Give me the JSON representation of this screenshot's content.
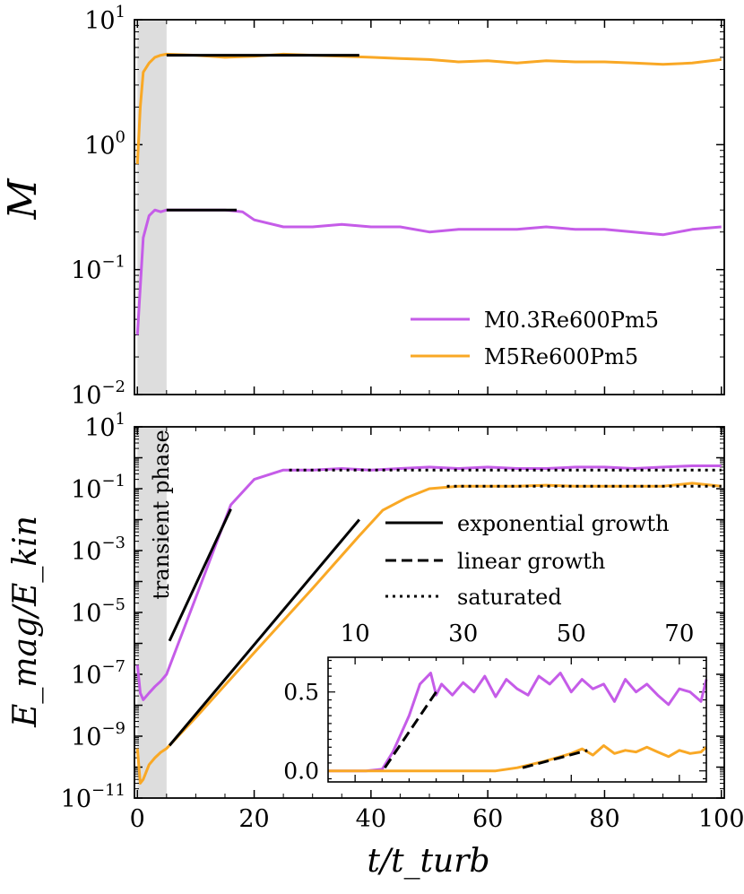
{
  "chart_data": [
    {
      "type": "line",
      "panel": "top",
      "yscale": "log",
      "ylabel": "M",
      "xlim": [
        -0.5,
        100.5
      ],
      "ylim_exp": [
        -2,
        1
      ],
      "ytick_labels": [
        [
          "10",
          "1"
        ],
        [
          "10",
          "0"
        ],
        [
          "10",
          "−1"
        ],
        [
          "10",
          "−2"
        ]
      ],
      "shaded_region": [
        0,
        5
      ],
      "series": [
        {
          "name": "M0.3Re600Pm5",
          "color": "#c55ce8",
          "x": [
            0,
            1,
            2,
            3,
            4,
            5,
            10,
            15,
            18,
            20,
            25,
            30,
            35,
            40,
            45,
            50,
            55,
            60,
            65,
            70,
            75,
            80,
            85,
            90,
            95,
            100
          ],
          "y": [
            0.03,
            0.18,
            0.27,
            0.3,
            0.29,
            0.3,
            0.3,
            0.3,
            0.29,
            0.25,
            0.22,
            0.22,
            0.23,
            0.22,
            0.22,
            0.2,
            0.21,
            0.21,
            0.21,
            0.22,
            0.21,
            0.21,
            0.2,
            0.19,
            0.21,
            0.22
          ]
        },
        {
          "name": "M5Re600Pm5",
          "color": "#f9a825",
          "x": [
            0,
            0.5,
            1,
            2,
            3,
            4,
            5,
            10,
            15,
            20,
            25,
            30,
            35,
            40,
            45,
            50,
            55,
            60,
            65,
            70,
            75,
            80,
            85,
            90,
            95,
            100
          ],
          "y": [
            0.7,
            2.0,
            3.8,
            4.5,
            5.0,
            5.2,
            5.3,
            5.2,
            5.0,
            5.1,
            5.3,
            5.2,
            5.1,
            5.0,
            4.9,
            4.8,
            4.6,
            4.7,
            4.5,
            4.7,
            4.6,
            4.6,
            4.5,
            4.4,
            4.5,
            4.8
          ]
        }
      ],
      "fits": [
        {
          "style": "solid",
          "x": [
            5,
            38
          ],
          "y": [
            5.2,
            5.2
          ]
        },
        {
          "style": "solid",
          "x": [
            5,
            17
          ],
          "y": [
            0.3,
            0.3
          ]
        }
      ],
      "legend": {
        "position": "lower-right",
        "entries": [
          "M0.3Re600Pm5",
          "M5Re600Pm5"
        ]
      }
    },
    {
      "type": "line",
      "panel": "bottom",
      "yscale": "log",
      "xlabel": "t/t_turb",
      "ylabel": "E_mag/E_kin",
      "xlim": [
        -0.5,
        100.5
      ],
      "ylim_exp": [
        -11,
        1
      ],
      "xtick_labels": [
        "0",
        "20",
        "40",
        "60",
        "80",
        "100"
      ],
      "ytick_labels": [
        [
          "10",
          "1"
        ],
        [
          "10",
          "−1"
        ],
        [
          "10",
          "−3"
        ],
        [
          "10",
          "−5"
        ],
        [
          "10",
          "−7"
        ],
        [
          "10",
          "−9"
        ],
        [
          "10",
          "−11"
        ]
      ],
      "shaded_region": [
        0,
        5
      ],
      "shaded_label": "transient phase",
      "series": [
        {
          "name": "M0.3Re600Pm5",
          "color": "#c55ce8",
          "x": [
            0,
            0.5,
            1,
            2,
            3,
            4,
            5,
            10,
            16,
            20,
            25,
            30,
            35,
            40,
            45,
            50,
            55,
            60,
            65,
            70,
            75,
            80,
            85,
            90,
            95,
            100
          ],
          "y": [
            2e-07,
            2.5e-08,
            1.5e-08,
            2.5e-08,
            4e-08,
            6e-08,
            1e-07,
            3e-05,
            0.03,
            0.2,
            0.4,
            0.4,
            0.45,
            0.4,
            0.45,
            0.5,
            0.45,
            0.5,
            0.45,
            0.45,
            0.5,
            0.5,
            0.45,
            0.5,
            0.55,
            0.55
          ]
        },
        {
          "name": "M5Re600Pm5",
          "color": "#f9a825",
          "x": [
            0,
            0.5,
            1,
            2,
            3,
            4,
            5,
            10,
            20,
            30,
            38,
            42,
            46,
            50,
            55,
            60,
            65,
            70,
            75,
            80,
            85,
            90,
            95,
            100
          ],
          "y": [
            4e-10,
            3e-11,
            4e-11,
            1.2e-10,
            2e-10,
            3e-10,
            4e-10,
            4e-09,
            5e-07,
            6e-05,
            0.003,
            0.02,
            0.05,
            0.1,
            0.12,
            0.12,
            0.12,
            0.13,
            0.12,
            0.12,
            0.12,
            0.12,
            0.15,
            0.12
          ]
        }
      ],
      "fits": [
        {
          "style": "solid",
          "x": [
            5.5,
            16
          ],
          "y": [
            1.2e-06,
            0.022
          ]
        },
        {
          "style": "solid",
          "x": [
            5.5,
            38
          ],
          "y": [
            5e-10,
            0.01
          ]
        },
        {
          "style": "dotted",
          "x": [
            26,
            100
          ],
          "y": [
            0.4,
            0.4
          ]
        },
        {
          "style": "dotted",
          "x": [
            53,
            100
          ],
          "y": [
            0.12,
            0.12
          ]
        }
      ],
      "legend": {
        "position": "center-right",
        "entries": [
          "exponential growth",
          "linear growth",
          "saturated"
        ]
      }
    },
    {
      "type": "line",
      "panel": "inset",
      "yscale": "linear",
      "xlim": [
        5,
        75
      ],
      "ylim": [
        -0.07,
        0.72
      ],
      "xtick_labels": [
        "10",
        "30",
        "50",
        "70"
      ],
      "ytick_labels": [
        "0.5",
        "0.0"
      ],
      "series": [
        {
          "name": "M0.3Re600Pm5",
          "color": "#c55ce8",
          "x": [
            5,
            12,
            15,
            17,
            20,
            22,
            24,
            25,
            26,
            28,
            30,
            32,
            34,
            36,
            38,
            40,
            42,
            44,
            46,
            48,
            50,
            52,
            54,
            56,
            58,
            60,
            62,
            64,
            66,
            68,
            70,
            72,
            74,
            75
          ],
          "y": [
            0,
            0,
            0.01,
            0.12,
            0.35,
            0.55,
            0.62,
            0.48,
            0.55,
            0.48,
            0.56,
            0.5,
            0.6,
            0.47,
            0.58,
            0.52,
            0.48,
            0.6,
            0.55,
            0.62,
            0.5,
            0.58,
            0.52,
            0.55,
            0.44,
            0.58,
            0.5,
            0.55,
            0.48,
            0.42,
            0.52,
            0.5,
            0.44,
            0.58
          ]
        },
        {
          "name": "M5Re600Pm5",
          "color": "#f9a825",
          "x": [
            5,
            30,
            36,
            40,
            45,
            50,
            52,
            54,
            56,
            58,
            60,
            62,
            64,
            66,
            68,
            70,
            72,
            74,
            75
          ],
          "y": [
            0,
            0,
            0.0,
            0.02,
            0.06,
            0.11,
            0.14,
            0.1,
            0.16,
            0.11,
            0.13,
            0.12,
            0.15,
            0.12,
            0.09,
            0.13,
            0.11,
            0.12,
            0.15
          ]
        }
      ],
      "fits": [
        {
          "style": "dashed",
          "x": [
            15.5,
            25
          ],
          "y": [
            0.02,
            0.5
          ]
        },
        {
          "style": "dashed",
          "x": [
            41,
            53
          ],
          "y": [
            0.02,
            0.13
          ]
        }
      ]
    }
  ]
}
